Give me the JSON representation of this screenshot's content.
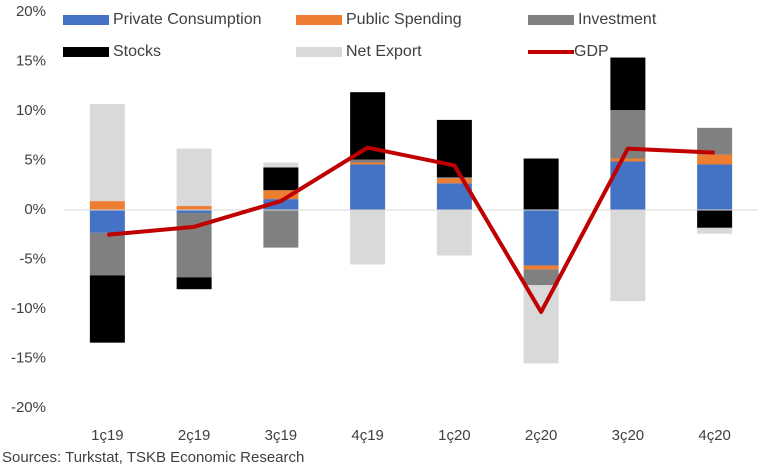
{
  "chart_data": {
    "type": "bar",
    "stacked": true,
    "categories": [
      "1ç19",
      "2ç19",
      "3ç19",
      "4ç19",
      "1ç20",
      "2ç20",
      "3ç20",
      "4ç20"
    ],
    "series": [
      {
        "name": "Private Consumption",
        "color": "#4472c4",
        "values": [
          -2.3,
          -0.3,
          1.1,
          4.6,
          2.7,
          -5.6,
          4.9,
          4.6
        ]
      },
      {
        "name": "Public Spending",
        "color": "#ed7d31",
        "values": [
          0.9,
          0.4,
          0.9,
          0.2,
          0.5,
          -0.4,
          0.3,
          1.0
        ]
      },
      {
        "name": "Investment",
        "color": "#808080",
        "values": [
          -4.3,
          -6.5,
          -3.8,
          0.3,
          0.1,
          -1.6,
          4.9,
          2.7
        ]
      },
      {
        "name": "Stocks",
        "color": "#000000",
        "values": [
          -6.8,
          -1.2,
          2.3,
          6.8,
          5.8,
          5.2,
          5.3,
          -1.8
        ]
      },
      {
        "name": "Net Export",
        "color": "#d9d9d9",
        "values": [
          9.8,
          5.8,
          0.5,
          -5.5,
          -4.6,
          -7.9,
          -9.2,
          -0.6
        ]
      },
      {
        "name": "GDP",
        "color": "#c00000",
        "type": "line",
        "values": [
          -2.5,
          -1.7,
          0.9,
          6.3,
          4.5,
          -10.3,
          6.2,
          5.8
        ]
      }
    ],
    "ylim": [
      -20,
      20
    ],
    "yticks": [
      {
        "value": -20,
        "label": "-20%"
      },
      {
        "value": -15,
        "label": "-15%"
      },
      {
        "value": -10,
        "label": "-10%"
      },
      {
        "value": -5,
        "label": "-5%"
      },
      {
        "value": 0,
        "label": "0%"
      },
      {
        "value": 5,
        "label": "5%"
      },
      {
        "value": 10,
        "label": "10%"
      },
      {
        "value": 15,
        "label": "15%"
      },
      {
        "value": 20,
        "label": "20%"
      }
    ],
    "source": "Sources: Turkstat, TSKB Economic Research"
  }
}
